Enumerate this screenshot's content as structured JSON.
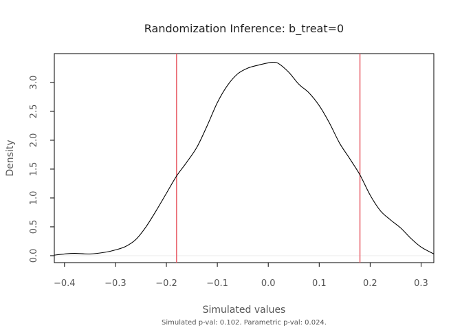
{
  "chart_data": {
    "type": "line",
    "title": "Randomization Inference: b_treat=0",
    "xlabel": "Simulated values",
    "ylabel": "Density",
    "caption": "Simulated p-val: 0.102. Parametric p-val: 0.024.",
    "xlim": [
      -0.42,
      0.325
    ],
    "ylim": [
      -0.12,
      3.5
    ],
    "x_ticks": [
      -0.4,
      -0.3,
      -0.2,
      -0.1,
      0.0,
      0.1,
      0.2,
      0.3
    ],
    "x_tick_labels": [
      "−0.4",
      "−0.3",
      "−0.2",
      "−0.1",
      "0.0",
      "0.1",
      "0.2",
      "0.3"
    ],
    "y_ticks": [
      0.0,
      0.5,
      1.0,
      1.5,
      2.0,
      2.5,
      3.0
    ],
    "y_tick_labels": [
      "0.0",
      "0.5",
      "1.0",
      "1.5",
      "2.0",
      "2.5",
      "3.0"
    ],
    "grid": false,
    "reference_lines": [
      {
        "x": -0.18,
        "color": "#e8606a"
      },
      {
        "x": 0.18,
        "color": "#e8606a"
      }
    ],
    "zero_line_color": "#eeeeee",
    "series": [
      {
        "color": "#000000",
        "x": [
          -0.42,
          -0.4,
          -0.38,
          -0.35,
          -0.32,
          -0.3,
          -0.28,
          -0.26,
          -0.24,
          -0.22,
          -0.2,
          -0.18,
          -0.16,
          -0.14,
          -0.12,
          -0.1,
          -0.08,
          -0.06,
          -0.04,
          -0.02,
          0.0,
          0.01,
          0.02,
          0.04,
          0.06,
          0.08,
          0.1,
          0.12,
          0.14,
          0.16,
          0.18,
          0.2,
          0.22,
          0.24,
          0.26,
          0.28,
          0.3,
          0.325
        ],
        "y": [
          0.01,
          0.03,
          0.04,
          0.03,
          0.06,
          0.1,
          0.16,
          0.28,
          0.5,
          0.78,
          1.08,
          1.38,
          1.62,
          1.88,
          2.25,
          2.65,
          2.95,
          3.15,
          3.25,
          3.3,
          3.34,
          3.35,
          3.33,
          3.18,
          2.97,
          2.82,
          2.6,
          2.3,
          1.95,
          1.68,
          1.4,
          1.05,
          0.78,
          0.62,
          0.48,
          0.3,
          0.15,
          0.03
        ]
      }
    ]
  }
}
